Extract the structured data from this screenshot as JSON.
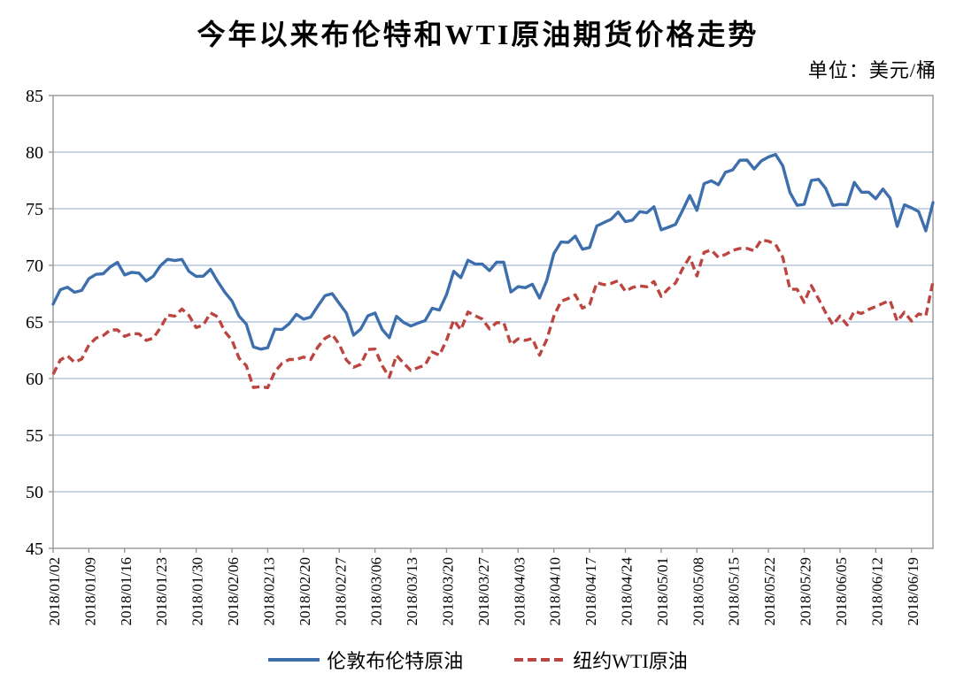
{
  "page": {
    "background": "#ffffff"
  },
  "chart_data": {
    "type": "line",
    "title": "今年以来布伦特和WTI原油期货价格走势",
    "unit_label": "单位：美元/桶",
    "grid": true,
    "legend_position": "bottom",
    "colors": {
      "grid": "#B5C7DE",
      "border": "#969696",
      "text": "#000000"
    },
    "y_axis": {
      "min": 45,
      "max": 85,
      "step": 5
    },
    "x_label_every": 5,
    "x_labels": [
      "2018/01/02",
      "2018/01/09",
      "2018/01/16",
      "2018/01/23",
      "2018/01/30",
      "2018/02/06",
      "2018/02/13",
      "2018/02/20",
      "2018/02/27",
      "2018/03/06",
      "2018/03/13",
      "2018/03/20",
      "2018/03/27",
      "2018/04/03",
      "2018/04/10",
      "2018/04/17",
      "2018/04/24",
      "2018/05/01",
      "2018/05/08",
      "2018/05/15",
      "2018/05/22",
      "2018/05/29",
      "2018/06/05",
      "2018/06/12",
      "2018/06/19"
    ],
    "series": [
      {
        "name": "伦敦布伦特原油",
        "color": "#3E6FAD",
        "style": "solid",
        "values": [
          66.57,
          67.84,
          68.07,
          67.62,
          67.78,
          68.82,
          69.2,
          69.26,
          69.87,
          70.26,
          69.15,
          69.38,
          69.31,
          68.61,
          69.03,
          69.96,
          70.53,
          70.42,
          70.52,
          69.46,
          69.02,
          69.05,
          69.65,
          68.58,
          67.62,
          66.86,
          65.51,
          64.81,
          62.79,
          62.59,
          62.72,
          64.36,
          64.33,
          64.84,
          65.67,
          65.25,
          65.42,
          66.39,
          67.31,
          67.5,
          66.63,
          65.78,
          63.83,
          64.37,
          65.54,
          65.79,
          64.34,
          63.61,
          65.49,
          64.95,
          64.64,
          64.89,
          65.12,
          66.21,
          66.05,
          67.42,
          69.47,
          68.91,
          70.45,
          70.12,
          70.11,
          69.53,
          70.27,
          70.27,
          67.64,
          68.12,
          68.02,
          68.33,
          67.11,
          68.65,
          71.04,
          72.06,
          72.02,
          72.58,
          71.42,
          71.58,
          73.48,
          73.78,
          74.06,
          74.71,
          73.86,
          74.0,
          74.74,
          74.64,
          75.17,
          73.13,
          73.36,
          73.62,
          74.87,
          76.17,
          74.85,
          77.21,
          77.47,
          77.12,
          78.23,
          78.43,
          79.28,
          79.3,
          78.51,
          79.22,
          79.57,
          79.8,
          78.79,
          76.44,
          75.3,
          75.39,
          77.5,
          77.59,
          76.79,
          75.29,
          75.38,
          75.36,
          77.32,
          76.46,
          76.46,
          75.88,
          76.74,
          75.94,
          73.44,
          75.34,
          75.08,
          74.74,
          73.05,
          75.55
        ]
      },
      {
        "name": "纽约WTI原油",
        "color": "#BC4540",
        "style": "dashed",
        "values": [
          60.37,
          61.63,
          62.01,
          61.44,
          61.73,
          62.96,
          63.57,
          63.8,
          64.3,
          64.3,
          63.73,
          63.97,
          63.95,
          63.37,
          63.57,
          64.47,
          65.61,
          65.51,
          66.14,
          65.56,
          64.5,
          64.73,
          65.8,
          65.45,
          64.15,
          63.39,
          61.79,
          61.15,
          59.2,
          59.29,
          59.19,
          60.6,
          61.34,
          61.68,
          61.68,
          61.9,
          61.68,
          62.77,
          63.55,
          63.91,
          63.01,
          61.64,
          60.99,
          61.25,
          62.57,
          62.6,
          61.15,
          60.12,
          62.04,
          61.36,
          60.71,
          60.96,
          61.19,
          62.34,
          62.06,
          63.4,
          65.17,
          64.3,
          65.88,
          65.55,
          65.25,
          64.38,
          64.94,
          64.94,
          63.01,
          63.51,
          63.37,
          63.54,
          62.06,
          63.42,
          65.51,
          66.82,
          67.07,
          67.39,
          66.22,
          66.52,
          68.47,
          68.29,
          68.4,
          68.64,
          67.7,
          68.05,
          68.19,
          68.1,
          68.57,
          67.25,
          67.93,
          68.43,
          69.72,
          70.73,
          69.06,
          71.14,
          71.36,
          70.7,
          70.96,
          71.31,
          71.49,
          71.49,
          71.28,
          72.24,
          72.13,
          71.84,
          70.71,
          67.88,
          67.88,
          66.73,
          68.21,
          67.04,
          65.81,
          64.75,
          65.52,
          64.73,
          65.95,
          65.74,
          66.1,
          66.36,
          66.64,
          66.89,
          65.06,
          65.85,
          65.07,
          65.71,
          65.54,
          68.58
        ]
      }
    ]
  }
}
